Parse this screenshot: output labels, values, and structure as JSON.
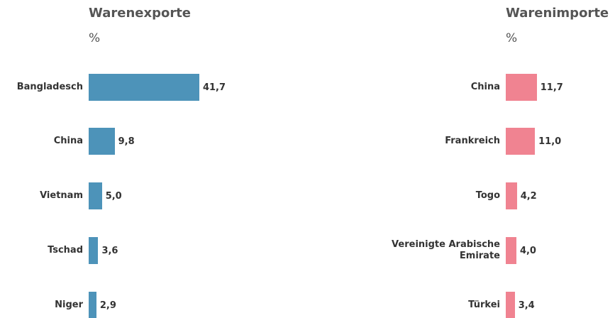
{
  "chart_data": [
    {
      "type": "bar",
      "orientation": "horizontal",
      "title": "Warenexporte",
      "subtitle": "%",
      "categories": [
        "Bangladesch",
        "China",
        "Vietnam",
        "Tschad",
        "Niger"
      ],
      "values": [
        41.7,
        9.8,
        5.0,
        3.6,
        2.9
      ],
      "value_labels": [
        "41,7",
        "9,8",
        "5,0",
        "3,6",
        "2,9"
      ],
      "color": "#4d93b9"
    },
    {
      "type": "bar",
      "orientation": "horizontal",
      "title": "Warenimporte",
      "subtitle": "%",
      "categories": [
        "China",
        "Frankreich",
        "Togo",
        "Vereinigte Arabische Emirate",
        "Türkei"
      ],
      "values": [
        11.7,
        11.0,
        4.2,
        4.0,
        3.4
      ],
      "value_labels": [
        "11,7",
        "11,0",
        "4,2",
        "4,0",
        "3,4"
      ],
      "color": "#f08391"
    }
  ]
}
